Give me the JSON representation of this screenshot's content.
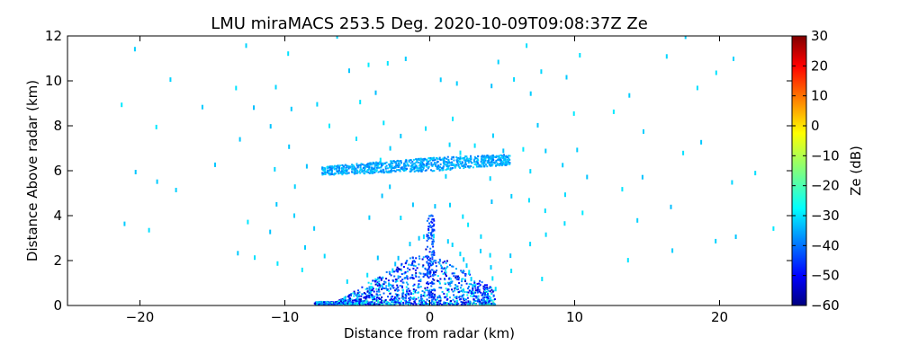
{
  "chart_data": {
    "type": "heatmap",
    "title": "LMU miraMACS 253.5 Deg. 2020-10-09T09:08:37Z  Ze",
    "xlabel": "Distance from radar (km)",
    "ylabel": "Distance Above radar  (km)",
    "xlim": [
      -25,
      25
    ],
    "ylim": [
      0,
      12
    ],
    "xticks": [
      -20,
      -10,
      0,
      10,
      20
    ],
    "xtick_labels": [
      "−20",
      "−10",
      "0",
      "10",
      "20"
    ],
    "yticks": [
      0,
      2,
      4,
      6,
      8,
      10,
      12
    ],
    "ytick_labels": [
      "0",
      "2",
      "4",
      "6",
      "8",
      "10",
      "12"
    ],
    "colorbar": {
      "label": "Ze (dB)",
      "range": [
        -60,
        30
      ],
      "ticks": [
        30,
        20,
        10,
        0,
        -10,
        -20,
        -30,
        -40,
        -50,
        -60
      ],
      "tick_labels": [
        "30",
        "20",
        "10",
        "0",
        "−10",
        "−20",
        "−30",
        "−40",
        "−50",
        "−60"
      ],
      "colormap": "jet"
    },
    "features": [
      {
        "name": "cloud-layer",
        "x_range_km": [
          -7.5,
          5.5
        ],
        "height_km": 6.2,
        "thickness_km": 0.6,
        "ze_db": -33
      },
      {
        "name": "near-ground-echo",
        "x_range_km": [
          -8,
          4.5
        ],
        "height_range_km": [
          0,
          2.5
        ],
        "ze_db_range": [
          -55,
          -20
        ]
      },
      {
        "name": "noise-arcs",
        "elevation_rays": true,
        "ze_db": -30
      }
    ]
  }
}
